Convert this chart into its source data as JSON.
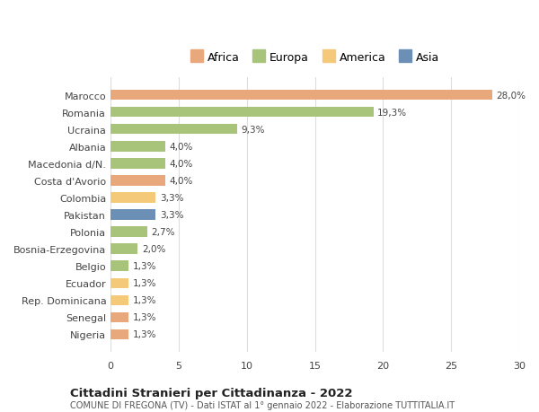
{
  "categories": [
    "Nigeria",
    "Senegal",
    "Rep. Dominicana",
    "Ecuador",
    "Belgio",
    "Bosnia-Erzegovina",
    "Polonia",
    "Pakistan",
    "Colombia",
    "Costa d'Avorio",
    "Macedonia d/N.",
    "Albania",
    "Ucraina",
    "Romania",
    "Marocco"
  ],
  "values": [
    1.3,
    1.3,
    1.3,
    1.3,
    1.3,
    2.0,
    2.7,
    3.3,
    3.3,
    4.0,
    4.0,
    4.0,
    9.3,
    19.3,
    28.0
  ],
  "colors": [
    "#e8a87c",
    "#e8a87c",
    "#f5c97a",
    "#f5c97a",
    "#a8c47a",
    "#a8c47a",
    "#a8c47a",
    "#6b8fb5",
    "#f5c97a",
    "#e8a87c",
    "#a8c47a",
    "#a8c47a",
    "#a8c47a",
    "#a8c47a",
    "#e8a87c"
  ],
  "labels": [
    "1,3%",
    "1,3%",
    "1,3%",
    "1,3%",
    "1,3%",
    "2,0%",
    "2,7%",
    "3,3%",
    "3,3%",
    "4,0%",
    "4,0%",
    "4,0%",
    "9,3%",
    "19,3%",
    "28,0%"
  ],
  "legend": {
    "Africa": "#e8a87c",
    "Europa": "#a8c47a",
    "America": "#f5c97a",
    "Asia": "#6b8fb5"
  },
  "title": "Cittadini Stranieri per Cittadinanza - 2022",
  "subtitle": "COMUNE DI FREGONA (TV) - Dati ISTAT al 1° gennaio 2022 - Elaborazione TUTTITALIA.IT",
  "xlim": [
    0,
    30
  ],
  "xticks": [
    0,
    5,
    10,
    15,
    20,
    25,
    30
  ],
  "background_color": "#ffffff",
  "grid_color": "#dddddd"
}
